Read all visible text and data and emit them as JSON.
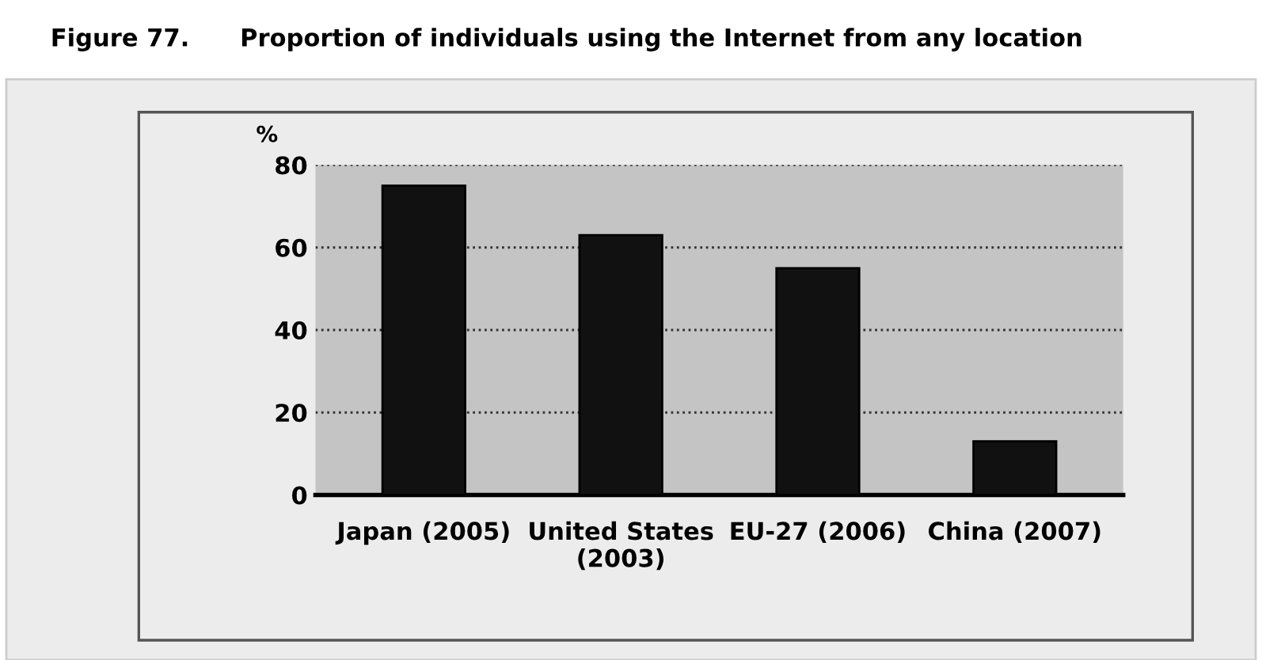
{
  "chart_data": {
    "type": "bar",
    "title": "Figure 77.      Proportion of individuals using the Internet from any location",
    "ylabel": "%",
    "categories": [
      "Japan (2005)",
      "United States\n(2003)",
      "EU-27 (2006)",
      "China (2007)"
    ],
    "values": [
      75,
      63,
      55,
      13
    ],
    "color": "#111111",
    "ylim": [
      0,
      80
    ],
    "yticks": [
      0,
      20,
      40,
      60,
      80
    ],
    "grid": "y",
    "line_style": "dotted"
  }
}
